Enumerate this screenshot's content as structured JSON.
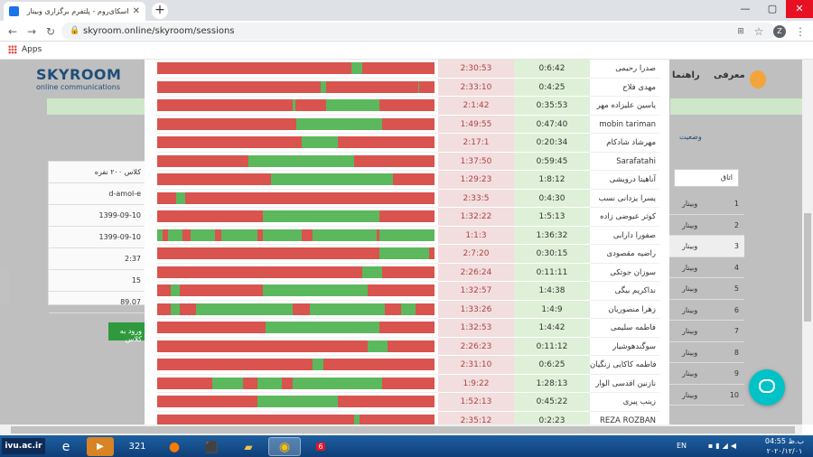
{
  "browser": {
    "tab_title": "اسکای‌روم - پلتفرم برگزاری وبینار",
    "url": "skyroom.online/skyroom/sessions",
    "bookmark_apps": "Apps",
    "profile_initial": "Z"
  },
  "background": {
    "logo_title": "SKYROOM",
    "logo_sub": "online communications",
    "nav_items": [
      "معرفی",
      "راهنما"
    ],
    "report_link": "وضعیت",
    "search_placeholder": "اتاق",
    "left_panel": [
      "کلاس ۲۰۰ نفره",
      "d-amol-e",
      "1399-09-10",
      "1399-09-10",
      "2:37",
      "15",
      "89.07"
    ],
    "enter_class": "ورود به کلاس",
    "table_header": {
      "num": "#",
      "room": "اتاق"
    },
    "rows": [
      {
        "n": "1",
        "room": "وبینار"
      },
      {
        "n": "2",
        "room": "وبینار"
      },
      {
        "n": "3",
        "room": "وبینار"
      },
      {
        "n": "4",
        "room": "وبینار"
      },
      {
        "n": "5",
        "room": "وبینار"
      },
      {
        "n": "6",
        "room": "وبینار"
      },
      {
        "n": "7",
        "room": "وبینار"
      },
      {
        "n": "8",
        "room": "وبینار"
      },
      {
        "n": "9",
        "room": "وبینار"
      },
      {
        "n": "10",
        "room": "وبینار"
      }
    ]
  },
  "modal_rows": [
    {
      "name": "صدرا رحیمی",
      "present": "0:6:42",
      "absent": "2:30:53",
      "green": [
        [
          0.7,
          0.74
        ]
      ]
    },
    {
      "name": "مهدی فلاح",
      "present": "0:4:25",
      "absent": "2:33:10",
      "green": [
        [
          0.59,
          0.61
        ],
        [
          0.94,
          0.945
        ]
      ]
    },
    {
      "name": "یاسین علیزاده مهر",
      "present": "0:35:53",
      "absent": "2:1:42",
      "green": [
        [
          0.49,
          0.5
        ],
        [
          0.61,
          0.8
        ]
      ]
    },
    {
      "name": "mobin tariman",
      "present": "0:47:40",
      "absent": "1:49:55",
      "green": [
        [
          0.5,
          0.81
        ]
      ]
    },
    {
      "name": "مهرشاد شادکام",
      "present": "0:20:34",
      "absent": "2:17:1",
      "green": [
        [
          0.52,
          0.65
        ]
      ]
    },
    {
      "name": "Sarafatahi",
      "present": "0:59:45",
      "absent": "1:37:50",
      "green": [
        [
          0.33,
          0.71
        ],
        [
          0.54,
          0.545
        ]
      ]
    },
    {
      "name": "آناهیتا درویشی",
      "present": "1:8:12",
      "absent": "1:29:23",
      "green": [
        [
          0.41,
          0.85
        ]
      ]
    },
    {
      "name": "یسرا یزدانی نسب",
      "present": "0:4:30",
      "absent": "2:33:5",
      "green": [
        [
          0.07,
          0.1
        ]
      ]
    },
    {
      "name": "کوثر عیوضی زاده",
      "present": "1:5:13",
      "absent": "1:32:22",
      "green": [
        [
          0.38,
          0.8
        ]
      ]
    },
    {
      "name": "صفورا دارابی",
      "present": "1:36:32",
      "absent": "1:1:3",
      "green": [
        [
          0.0,
          0.02
        ],
        [
          0.04,
          0.09
        ],
        [
          0.12,
          0.21
        ],
        [
          0.23,
          0.36
        ],
        [
          0.38,
          0.52
        ],
        [
          0.56,
          0.79
        ],
        [
          0.8,
          1.0
        ]
      ]
    },
    {
      "name": "راضیه مقصودی",
      "present": "0:30:15",
      "absent": "2:7:20",
      "green": [
        [
          0.8,
          0.98
        ]
      ]
    },
    {
      "name": "سوزان جوتکی",
      "present": "0:11:11",
      "absent": "2:26:24",
      "green": [
        [
          0.74,
          0.81
        ]
      ]
    },
    {
      "name": "نداکریم بیگی",
      "present": "1:4:38",
      "absent": "1:32:57",
      "green": [
        [
          0.05,
          0.08
        ],
        [
          0.38,
          0.76
        ]
      ]
    },
    {
      "name": "زهرا منصوریان",
      "present": "1:4:9",
      "absent": "1:33:26",
      "green": [
        [
          0.05,
          0.08
        ],
        [
          0.14,
          0.49
        ],
        [
          0.55,
          0.82
        ],
        [
          0.88,
          0.93
        ]
      ]
    },
    {
      "name": "فاطمه سلیمی",
      "present": "1:4:42",
      "absent": "1:32:53",
      "green": [
        [
          0.39,
          0.8
        ]
      ]
    },
    {
      "name": "سوگندهوشیار",
      "present": "0:11:12",
      "absent": "2:26:23",
      "green": [
        [
          0.76,
          0.83
        ]
      ]
    },
    {
      "name": "فاطمه کاکایی زنگیان",
      "present": "0:6:25",
      "absent": "2:31:10",
      "green": [
        [
          0.56,
          0.6
        ]
      ]
    },
    {
      "name": "نازنین اقدسی الوار",
      "present": "1:28:13",
      "absent": "1:9:22",
      "green": [
        [
          0.2,
          0.31
        ],
        [
          0.36,
          0.45
        ],
        [
          0.49,
          0.81
        ]
      ]
    },
    {
      "name": "زینب پیری",
      "present": "0:45:22",
      "absent": "1:52:13",
      "green": [
        [
          0.36,
          0.65
        ]
      ]
    },
    {
      "name": "REZA ROZBAN",
      "present": "0:2:23",
      "absent": "2:35:12",
      "green": [
        [
          0.71,
          0.73
        ]
      ]
    }
  ],
  "colors": {
    "present": "#5cb85c",
    "absent": "#d9534f",
    "support": "#00c2c7"
  },
  "taskbar": {
    "ivu": "ivu.ac.ir",
    "lang": "EN",
    "time": "04:55 ب.ظ",
    "date": "۲۰۲۰/۱۲/۰۱",
    "mail_count": "6",
    "calendar_day": "321"
  }
}
